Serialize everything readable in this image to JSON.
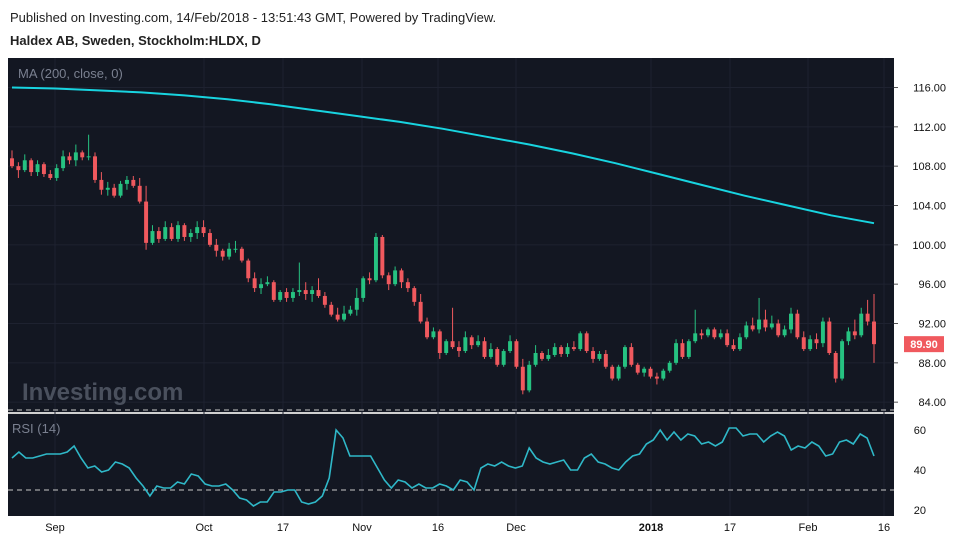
{
  "header": {
    "published": "Published on Investing.com, 14/Feb/2018 - 13:51:43 GMT, Powered by TradingView.",
    "symbol": "Haldex AB, Sweden, Stockholm:HLDX, D"
  },
  "watermark": "Investing.com",
  "colors": {
    "up": "#26c281",
    "down": "#f0595e",
    "ma": "#18d4e0",
    "rsi": "#2fb8c8",
    "background": "#131722"
  },
  "chart_data": [
    {
      "type": "candlestick",
      "indicator_label": "MA (200, close, 0)",
      "price_tag": "89.90",
      "ylim": [
        83,
        119
      ],
      "y_ticks": [
        "116.00",
        "112.00",
        "108.00",
        "104.00",
        "100.00",
        "96.00",
        "92.00",
        "88.00",
        "84.00"
      ],
      "x_ticks": [
        "Sep",
        "Oct",
        "17",
        "Nov",
        "16",
        "Dec",
        "2018",
        "17",
        "Feb",
        "16"
      ],
      "candles": [
        [
          108.8,
          109.6,
          107.8,
          108.0
        ],
        [
          108.0,
          108.4,
          106.8,
          107.6
        ],
        [
          107.6,
          109.2,
          107.4,
          108.6
        ],
        [
          108.6,
          108.8,
          107.0,
          107.4
        ],
        [
          107.4,
          108.6,
          107.0,
          108.2
        ],
        [
          108.2,
          108.4,
          106.9,
          107.2
        ],
        [
          107.2,
          107.6,
          106.6,
          106.8
        ],
        [
          106.8,
          108.2,
          106.5,
          107.8
        ],
        [
          107.8,
          109.6,
          107.5,
          109.0
        ],
        [
          109.0,
          109.4,
          108.2,
          108.6
        ],
        [
          108.6,
          110.2,
          108.0,
          109.4
        ],
        [
          109.4,
          109.6,
          108.6,
          108.9
        ],
        [
          108.9,
          111.2,
          108.6,
          109.0
        ],
        [
          109.0,
          109.4,
          106.3,
          106.6
        ],
        [
          106.6,
          107.4,
          105.1,
          105.6
        ],
        [
          105.6,
          106.4,
          105.0,
          105.8
        ],
        [
          105.8,
          106.2,
          104.8,
          105.0
        ],
        [
          105.0,
          106.5,
          104.8,
          106.2
        ],
        [
          106.2,
          107.0,
          105.6,
          106.6
        ],
        [
          106.6,
          107.0,
          105.8,
          106.0
        ],
        [
          106.0,
          106.8,
          104.2,
          104.4
        ],
        [
          104.4,
          106.0,
          99.5,
          100.2
        ],
        [
          100.2,
          102.0,
          100.0,
          101.4
        ],
        [
          101.4,
          101.8,
          100.2,
          100.6
        ],
        [
          100.6,
          102.4,
          100.4,
          101.8
        ],
        [
          101.8,
          102.2,
          100.4,
          100.6
        ],
        [
          100.6,
          102.4,
          100.3,
          102.0
        ],
        [
          102.0,
          102.2,
          100.4,
          100.8
        ],
        [
          100.8,
          101.6,
          100.3,
          101.2
        ],
        [
          101.2,
          102.4,
          100.6,
          101.8
        ],
        [
          101.8,
          102.5,
          100.8,
          101.2
        ],
        [
          101.2,
          101.6,
          99.8,
          100.0
        ],
        [
          100.0,
          100.6,
          98.8,
          99.4
        ],
        [
          99.4,
          99.6,
          98.4,
          98.8
        ],
        [
          98.8,
          100.2,
          98.5,
          99.6
        ],
        [
          99.6,
          100.4,
          99.2,
          99.6
        ],
        [
          99.6,
          99.8,
          98.2,
          98.4
        ],
        [
          98.4,
          98.6,
          96.2,
          96.6
        ],
        [
          96.6,
          97.2,
          95.2,
          95.6
        ],
        [
          95.6,
          96.6,
          95.0,
          96.0
        ],
        [
          96.0,
          96.8,
          95.8,
          96.2
        ],
        [
          96.2,
          96.4,
          94.2,
          94.4
        ],
        [
          94.4,
          95.4,
          94.2,
          95.2
        ],
        [
          95.2,
          95.6,
          94.2,
          94.6
        ],
        [
          94.6,
          95.6,
          94.2,
          95.2
        ],
        [
          95.2,
          98.2,
          94.8,
          95.4
        ],
        [
          95.4,
          96.2,
          94.4,
          95.0
        ],
        [
          95.0,
          95.8,
          94.2,
          95.4
        ],
        [
          95.4,
          96.6,
          94.6,
          94.8
        ],
        [
          94.8,
          95.2,
          93.6,
          93.9
        ],
        [
          93.9,
          94.2,
          92.7,
          92.9
        ],
        [
          92.9,
          93.6,
          92.2,
          92.4
        ],
        [
          92.4,
          93.8,
          92.2,
          93.0
        ],
        [
          93.0,
          93.8,
          92.8,
          93.4
        ],
        [
          93.4,
          95.6,
          92.8,
          94.6
        ],
        [
          94.6,
          96.8,
          94.2,
          96.6
        ],
        [
          96.6,
          97.2,
          96.0,
          96.4
        ],
        [
          96.4,
          101.2,
          96.2,
          100.8
        ],
        [
          100.8,
          101.0,
          96.6,
          96.9
        ],
        [
          96.9,
          97.2,
          95.4,
          96.0
        ],
        [
          96.0,
          97.8,
          95.8,
          97.4
        ],
        [
          97.4,
          97.6,
          95.6,
          96.2
        ],
        [
          96.2,
          96.6,
          95.2,
          95.6
        ],
        [
          95.6,
          95.8,
          93.8,
          94.2
        ],
        [
          94.2,
          95.0,
          92.0,
          92.2
        ],
        [
          92.2,
          92.6,
          90.4,
          90.6
        ],
        [
          90.6,
          91.6,
          90.4,
          91.2
        ],
        [
          91.2,
          91.4,
          88.4,
          89.0
        ],
        [
          89.0,
          90.4,
          88.8,
          90.2
        ],
        [
          90.2,
          93.6,
          89.4,
          89.6
        ],
        [
          89.6,
          90.2,
          88.6,
          89.2
        ],
        [
          89.2,
          91.2,
          89.0,
          90.6
        ],
        [
          90.6,
          90.8,
          89.4,
          89.8
        ],
        [
          89.8,
          90.8,
          89.6,
          90.2
        ],
        [
          90.2,
          90.6,
          88.4,
          88.6
        ],
        [
          88.6,
          90.0,
          88.4,
          89.4
        ],
        [
          89.4,
          89.6,
          87.6,
          87.8
        ],
        [
          87.8,
          89.4,
          87.6,
          89.2
        ],
        [
          89.2,
          90.8,
          89.0,
          90.2
        ],
        [
          90.2,
          90.4,
          87.4,
          87.6
        ],
        [
          87.6,
          88.4,
          84.8,
          85.2
        ],
        [
          85.2,
          88.2,
          85.0,
          87.8
        ],
        [
          87.8,
          89.8,
          87.6,
          89.0
        ],
        [
          89.0,
          89.2,
          88.2,
          88.4
        ],
        [
          88.4,
          89.4,
          88.2,
          88.8
        ],
        [
          88.8,
          90.0,
          88.6,
          89.6
        ],
        [
          89.6,
          89.8,
          88.6,
          88.9
        ],
        [
          88.9,
          90.0,
          88.6,
          89.6
        ],
        [
          89.6,
          90.2,
          89.2,
          89.4
        ],
        [
          89.4,
          91.2,
          89.2,
          91.0
        ],
        [
          91.0,
          91.2,
          89.0,
          89.2
        ],
        [
          89.2,
          89.6,
          88.0,
          88.4
        ],
        [
          88.4,
          89.2,
          88.2,
          88.9
        ],
        [
          88.9,
          89.3,
          87.4,
          87.6
        ],
        [
          87.6,
          87.8,
          86.2,
          86.4
        ],
        [
          86.4,
          87.8,
          86.2,
          87.6
        ],
        [
          87.6,
          89.8,
          87.4,
          89.6
        ],
        [
          89.6,
          90.0,
          87.6,
          87.8
        ],
        [
          87.8,
          88.0,
          86.8,
          87.0
        ],
        [
          87.0,
          87.6,
          86.6,
          87.4
        ],
        [
          87.4,
          87.6,
          86.4,
          86.6
        ],
        [
          86.6,
          87.0,
          85.8,
          86.4
        ],
        [
          86.4,
          87.4,
          86.2,
          87.2
        ],
        [
          87.2,
          88.2,
          87.0,
          88.0
        ],
        [
          88.0,
          90.4,
          87.8,
          90.0
        ],
        [
          90.0,
          90.4,
          88.4,
          88.6
        ],
        [
          88.6,
          90.4,
          88.4,
          90.2
        ],
        [
          90.2,
          93.4,
          90.0,
          91.0
        ],
        [
          91.0,
          91.4,
          90.4,
          90.8
        ],
        [
          90.8,
          91.6,
          90.6,
          91.4
        ],
        [
          91.4,
          91.6,
          90.4,
          90.6
        ],
        [
          90.6,
          91.4,
          90.4,
          91.0
        ],
        [
          91.0,
          91.4,
          89.6,
          89.8
        ],
        [
          89.8,
          90.4,
          89.2,
          89.4
        ],
        [
          89.4,
          91.0,
          89.2,
          90.6
        ],
        [
          90.6,
          92.2,
          90.4,
          91.8
        ],
        [
          91.8,
          92.6,
          91.2,
          91.4
        ],
        [
          91.4,
          94.6,
          91.0,
          92.4
        ],
        [
          92.4,
          93.4,
          91.2,
          91.6
        ],
        [
          91.6,
          92.8,
          91.4,
          92.0
        ],
        [
          92.0,
          92.4,
          90.6,
          90.8
        ],
        [
          90.8,
          91.8,
          90.6,
          91.4
        ],
        [
          91.4,
          93.6,
          91.0,
          93.0
        ],
        [
          93.0,
          93.4,
          90.4,
          90.6
        ],
        [
          90.6,
          91.2,
          89.2,
          89.4
        ],
        [
          89.4,
          90.8,
          89.2,
          90.4
        ],
        [
          90.4,
          91.0,
          89.4,
          90.0
        ],
        [
          90.0,
          92.6,
          89.6,
          92.2
        ],
        [
          92.2,
          92.6,
          88.8,
          89.0
        ],
        [
          89.0,
          89.2,
          86.0,
          86.4
        ],
        [
          86.4,
          90.4,
          86.2,
          90.2
        ],
        [
          90.2,
          91.6,
          89.8,
          91.2
        ],
        [
          91.2,
          92.4,
          90.4,
          90.8
        ],
        [
          90.8,
          93.6,
          90.6,
          93.0
        ],
        [
          93.0,
          94.4,
          91.8,
          92.2
        ],
        [
          92.2,
          95.0,
          88.0,
          89.9
        ]
      ],
      "ma200": [
        116.0,
        115.9,
        115.7,
        115.5,
        115.2,
        114.8,
        114.3,
        113.7,
        113.1,
        112.5,
        111.8,
        111.0,
        110.2,
        109.3,
        108.3,
        107.2,
        106.1,
        105.0,
        104.0,
        103.0,
        102.2
      ]
    },
    {
      "type": "line",
      "indicator_label": "RSI (14)",
      "ylim": [
        17,
        68
      ],
      "y_ticks": [
        "60",
        "40",
        "20"
      ],
      "y_tick_values": [
        60,
        40,
        20
      ],
      "bands": [
        70,
        30
      ],
      "values": [
        46,
        49,
        46,
        46,
        47,
        48,
        48,
        48,
        49,
        52,
        46,
        41,
        42,
        39,
        40,
        44,
        43,
        41,
        36,
        32,
        27,
        32,
        31,
        31,
        34,
        33,
        38,
        37,
        33,
        32,
        32,
        33,
        30,
        26,
        25,
        22,
        24,
        24,
        29,
        29,
        30,
        30,
        24,
        23,
        24,
        27,
        36,
        60,
        56,
        47,
        47,
        47,
        47,
        41,
        35,
        31,
        35,
        34,
        31,
        33,
        31,
        31,
        33,
        32,
        30,
        35,
        34,
        30,
        41,
        43,
        42,
        44,
        42,
        41,
        42,
        51,
        46,
        44,
        43,
        44,
        45,
        40,
        40,
        46,
        48,
        44,
        43,
        41,
        40,
        44,
        47,
        48,
        53,
        55,
        60,
        55,
        59,
        55,
        58,
        57,
        53,
        54,
        52,
        54,
        61,
        61,
        57,
        58,
        58,
        54,
        57,
        59,
        57,
        50,
        52,
        51,
        54,
        52,
        47,
        48,
        54,
        55,
        53,
        58,
        56,
        47
      ]
    }
  ]
}
